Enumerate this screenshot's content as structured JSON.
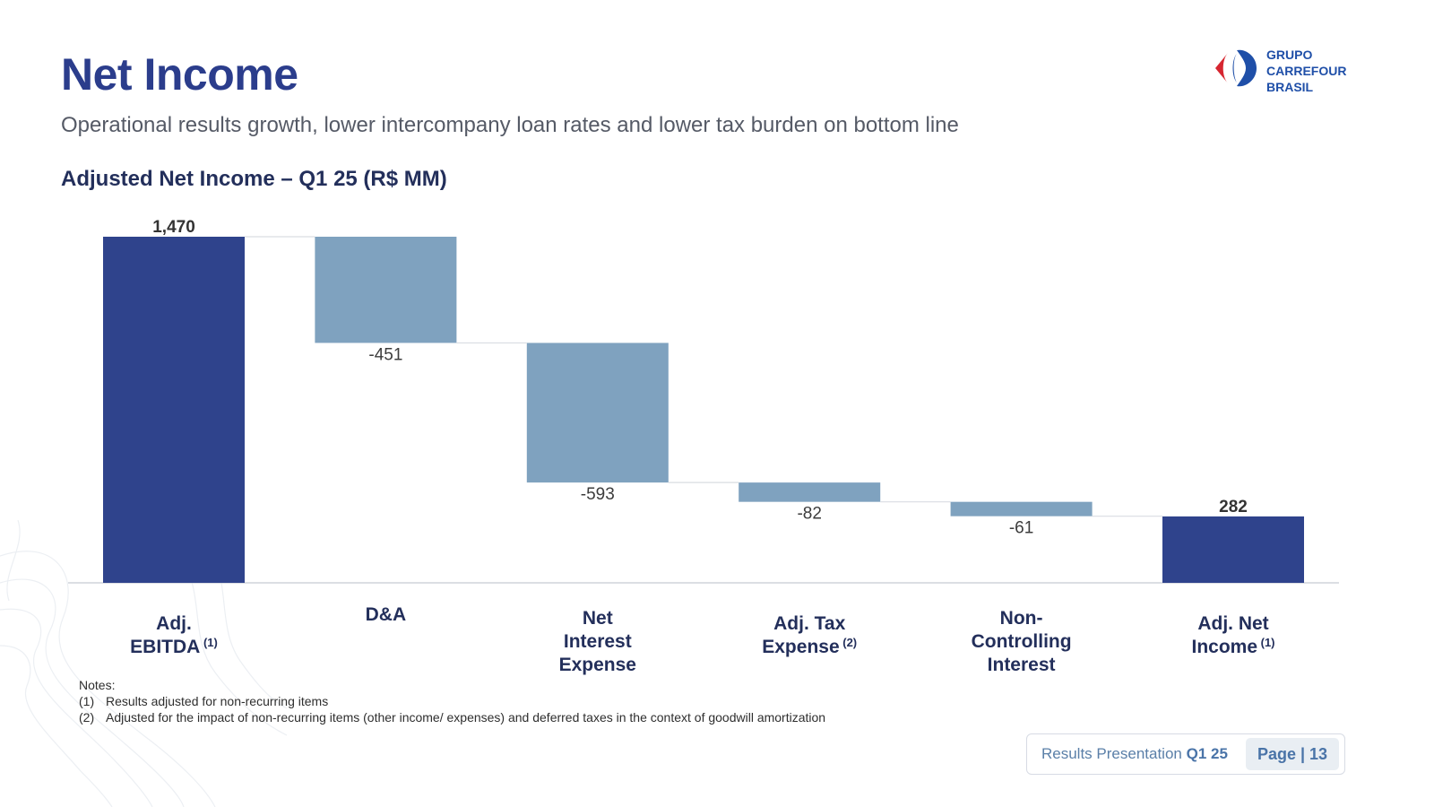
{
  "page": {
    "title": "Net Income",
    "subtitle": "Operational results growth, lower intercompany loan rates and lower tax burden on bottom line",
    "chart_heading": "Adjusted Net Income – Q1 25 (R$ MM)"
  },
  "logo": {
    "lines": [
      "GRUPO",
      "CARREFOUR",
      "BRASIL"
    ]
  },
  "chart_data": {
    "type": "waterfall",
    "title": "Adjusted Net Income – Q1 25 (R$ MM)",
    "unit": "R$ MM",
    "ylim": [
      0,
      1470
    ],
    "grid": false,
    "categories": [
      {
        "lines": [
          "Adj.",
          "EBITDA"
        ],
        "sup": "(1)",
        "sup_line": 1
      },
      {
        "lines": [
          "D&A"
        ],
        "sup": "",
        "sup_line": 0
      },
      {
        "lines": [
          "Net",
          "Interest",
          "Expense"
        ],
        "sup": "",
        "sup_line": 0
      },
      {
        "lines": [
          "Adj. Tax",
          "Expense"
        ],
        "sup": "(2)",
        "sup_line": 1
      },
      {
        "lines": [
          "Non-",
          "Controlling",
          "Interest"
        ],
        "sup": "",
        "sup_line": 0
      },
      {
        "lines": [
          "Adj. Net",
          "Income"
        ],
        "sup": "(1)",
        "sup_line": 1
      }
    ],
    "values": [
      1470,
      -451,
      -593,
      -82,
      -61,
      282
    ],
    "kinds": [
      "total",
      "delta",
      "delta",
      "delta",
      "delta",
      "total"
    ],
    "labels": [
      "1,470",
      "-451",
      "-593",
      "-82",
      "-61",
      "282"
    ],
    "colors": {
      "total": "#2f438c",
      "delta": "#7fa2bf"
    }
  },
  "notes": {
    "heading": "Notes:",
    "items": [
      {
        "num": "(1)",
        "text": "Results adjusted for non-recurring items"
      },
      {
        "num": "(2)",
        "text": "Adjusted for the impact of non-recurring items (other income/ expenses) and deferred taxes in the context of goodwill amortization"
      }
    ]
  },
  "footer": {
    "label": "Results Presentation",
    "period": "Q1 25",
    "page": "Page | 13"
  }
}
